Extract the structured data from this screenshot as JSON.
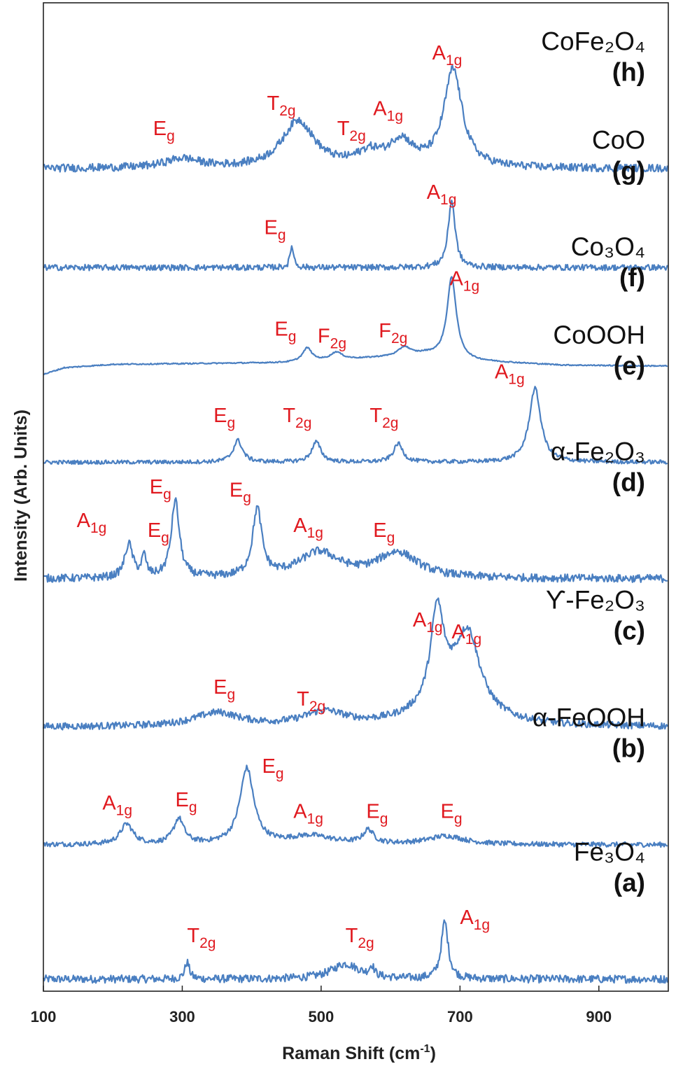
{
  "colors": {
    "trace": "#4a7fc1",
    "peak_label": "#e0191f",
    "text": "#111111",
    "frame": "#222222"
  },
  "chart_data": {
    "type": "line",
    "title": "",
    "xlabel": "Raman Shift (cm",
    "xlabel_sup": "-1",
    "xlabel_end": ")",
    "ylabel": "Intensity (Arb. Units)",
    "xlim": [
      100,
      1000
    ],
    "xticks": [
      100,
      300,
      500,
      700,
      900
    ],
    "xtick_labels": [
      "100",
      "300",
      "500",
      "700",
      "900"
    ],
    "y_ticks_shown": false,
    "grid": false,
    "series": [
      {
        "name": "Fe₃O₄",
        "letter": "(a)",
        "baseline": 0.0,
        "scale": 0.085,
        "noise": 0.008,
        "bg": [
          [
            100,
            0.01
          ],
          [
            1000,
            0.01
          ]
        ],
        "peaks": [
          [
            307,
            1.0,
            4
          ],
          [
            535,
            0.9,
            25
          ],
          [
            573,
            0.6,
            4
          ],
          [
            678,
            3.4,
            6
          ]
        ],
        "peak_labels": [
          {
            "main": "T",
            "sub": "2g",
            "x": 307,
            "h": 2.2
          },
          {
            "main": "T",
            "sub": "2g",
            "x": 535,
            "h": 2.2
          },
          {
            "main": "A",
            "sub": "1g",
            "x": 700,
            "h": 3.3
          }
        ]
      },
      {
        "name": "α-FeOOH",
        "letter": "(b)",
        "baseline": 0.136,
        "scale": 0.085,
        "noise": 0.005,
        "bg": [
          [
            100,
            0.01
          ],
          [
            1000,
            0.01
          ]
        ],
        "peaks": [
          [
            220,
            1.2,
            11
          ],
          [
            295,
            1.5,
            9
          ],
          [
            393,
            4.5,
            12
          ],
          [
            485,
            0.5,
            38
          ],
          [
            568,
            0.8,
            9
          ],
          [
            680,
            0.5,
            32
          ]
        ],
        "peak_labels": [
          {
            "main": "A",
            "sub": "1g",
            "x": 185,
            "h": 2.1
          },
          {
            "main": "E",
            "sub": "g",
            "x": 290,
            "h": 2.3
          },
          {
            "main": "E",
            "sub": "g",
            "x": 415,
            "h": 4.3
          },
          {
            "main": "A",
            "sub": "1g",
            "x": 460,
            "h": 1.6
          },
          {
            "main": "E",
            "sub": "g",
            "x": 565,
            "h": 1.6
          },
          {
            "main": "E",
            "sub": "g",
            "x": 672,
            "h": 1.6
          }
        ]
      },
      {
        "name": "ϒ-Fe₂O₃",
        "letter": "(c)",
        "baseline": 0.255,
        "scale": 0.085,
        "noise": 0.007,
        "bg": [
          [
            100,
            0.01
          ],
          [
            1000,
            0.01
          ]
        ],
        "peaks": [
          [
            350,
            0.8,
            40
          ],
          [
            505,
            0.8,
            36
          ],
          [
            667,
            5.3,
            11
          ],
          [
            712,
            4.0,
            20
          ],
          [
            690,
            2.0,
            45
          ]
        ],
        "peak_labels": [
          {
            "main": "E",
            "sub": "g",
            "x": 345,
            "h": 2.0
          },
          {
            "main": "T",
            "sub": "2g",
            "x": 465,
            "h": 1.3
          },
          {
            "main": "A",
            "sub": "1g",
            "x": 632,
            "h": 6.0
          },
          {
            "main": "A",
            "sub": "1g",
            "x": 688,
            "h": 5.3
          }
        ]
      },
      {
        "name": "α-Fe₂O₃",
        "letter": "(d)",
        "baseline": 0.405,
        "scale": 0.085,
        "noise": 0.008,
        "bg": [
          [
            100,
            0.01
          ],
          [
            1000,
            0.01
          ]
        ],
        "peaks": [
          [
            223,
            2.0,
            7
          ],
          [
            245,
            1.2,
            4
          ],
          [
            290,
            4.6,
            7
          ],
          [
            408,
            4.0,
            8
          ],
          [
            497,
            1.5,
            36
          ],
          [
            610,
            1.5,
            36
          ]
        ],
        "peak_labels": [
          {
            "main": "A",
            "sub": "1g",
            "x": 148,
            "h": 3.1
          },
          {
            "main": "E",
            "sub": "g",
            "x": 250,
            "h": 2.5
          },
          {
            "main": "E",
            "sub": "g",
            "x": 253,
            "h": 5.1
          },
          {
            "main": "E",
            "sub": "g",
            "x": 368,
            "h": 4.9
          },
          {
            "main": "A",
            "sub": "1g",
            "x": 460,
            "h": 2.8
          },
          {
            "main": "E",
            "sub": "g",
            "x": 575,
            "h": 2.5
          }
        ]
      },
      {
        "name": "CoOOH",
        "letter": "(e)",
        "baseline": 0.523,
        "scale": 0.085,
        "noise": 0.004,
        "bg": [
          [
            100,
            0.01
          ],
          [
            1000,
            0.01
          ]
        ],
        "peaks": [
          [
            380,
            1.3,
            8
          ],
          [
            493,
            1.2,
            8
          ],
          [
            611,
            1.1,
            8
          ],
          [
            808,
            4.4,
            10
          ]
        ],
        "peak_labels": [
          {
            "main": "E",
            "sub": "g",
            "x": 345,
            "h": 2.4
          },
          {
            "main": "T",
            "sub": "2g",
            "x": 445,
            "h": 2.4
          },
          {
            "main": "T",
            "sub": "2g",
            "x": 570,
            "h": 2.4
          },
          {
            "main": "A",
            "sub": "1g",
            "x": 750,
            "h": 5.0
          }
        ]
      },
      {
        "name": "Co₃O₄",
        "letter": "(f)",
        "baseline": 0.612,
        "scale": 0.085,
        "noise": 0.0012,
        "bg": [
          [
            100,
            0.0
          ],
          [
            130,
            0.4
          ],
          [
            200,
            0.6
          ],
          [
            450,
            0.7
          ],
          [
            560,
            0.95
          ],
          [
            650,
            1.2
          ],
          [
            720,
            0.8
          ],
          [
            850,
            0.55
          ],
          [
            1000,
            0.5
          ]
        ],
        "peaks": [
          [
            480,
            0.8,
            8
          ],
          [
            522,
            0.45,
            10
          ],
          [
            620,
            0.5,
            10
          ],
          [
            688,
            4.8,
            8
          ]
        ],
        "peak_labels": [
          {
            "main": "E",
            "sub": "g",
            "x": 433,
            "h": 2.3
          },
          {
            "main": "F",
            "sub": "2g",
            "x": 495,
            "h": 1.9
          },
          {
            "main": "F",
            "sub": "2g",
            "x": 583,
            "h": 2.2
          },
          {
            "main": "A",
            "sub": "1g",
            "x": 685,
            "h": 5.3
          }
        ]
      },
      {
        "name": "CoO",
        "letter": "(g)",
        "baseline": 0.72,
        "scale": 0.085,
        "noise": 0.006,
        "bg": [
          [
            100,
            0.01
          ],
          [
            1000,
            0.01
          ]
        ],
        "peaks": [
          [
            458,
            1.3,
            3
          ],
          [
            688,
            4.0,
            6
          ]
        ],
        "peak_labels": [
          {
            "main": "E",
            "sub": "g",
            "x": 418,
            "h": 2.0
          },
          {
            "main": "A",
            "sub": "1g",
            "x": 652,
            "h": 4.1
          }
        ]
      },
      {
        "name": "CoFe₂O₄",
        "letter": "(h)",
        "baseline": 0.82,
        "scale": 0.085,
        "noise": 0.008,
        "bg": [
          [
            100,
            0.01
          ],
          [
            1000,
            0.01
          ]
        ],
        "peaks": [
          [
            300,
            0.55,
            30
          ],
          [
            467,
            2.8,
            28
          ],
          [
            570,
            0.8,
            22
          ],
          [
            615,
            1.5,
            20
          ],
          [
            690,
            5.8,
            16
          ]
        ],
        "peak_labels": [
          {
            "main": "E",
            "sub": "g",
            "x": 258,
            "h": 2.0
          },
          {
            "main": "T",
            "sub": "2g",
            "x": 422,
            "h": 3.5
          },
          {
            "main": "T",
            "sub": "2g",
            "x": 523,
            "h": 2.0
          },
          {
            "main": "A",
            "sub": "1g",
            "x": 575,
            "h": 3.2
          },
          {
            "main": "A",
            "sub": "1g",
            "x": 660,
            "h": 6.5
          }
        ]
      }
    ]
  }
}
